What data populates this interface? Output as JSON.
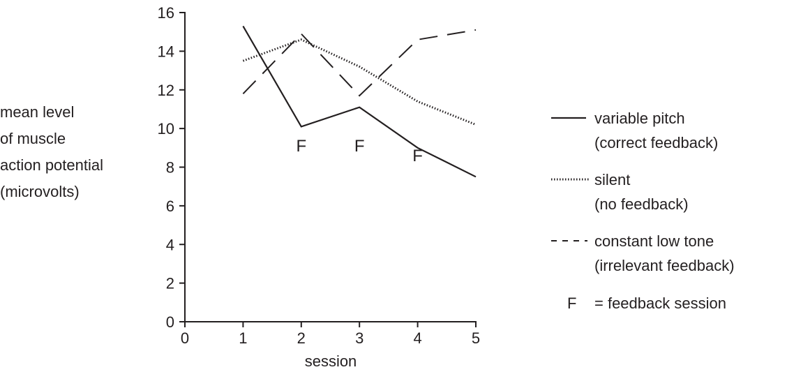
{
  "chart_data": {
    "type": "line",
    "title": "",
    "xlabel": "session",
    "ylabel_lines": [
      "mean level",
      "of muscle",
      "action potential",
      "(microvolts)"
    ],
    "xlim": [
      0,
      5
    ],
    "ylim": [
      0,
      16
    ],
    "xticks": [
      "0",
      "1",
      "2",
      "3",
      "4",
      "5"
    ],
    "yticks": [
      "0",
      "2",
      "4",
      "6",
      "8",
      "10",
      "12",
      "14",
      "16"
    ],
    "grid": false,
    "legend_position": "right",
    "x": [
      1,
      2,
      3,
      4,
      5
    ],
    "series": [
      {
        "key": "variable",
        "name_line1": "variable pitch",
        "name_line2": "(correct feedback)",
        "style": "solid",
        "values": [
          15.3,
          10.1,
          11.1,
          9.0,
          7.5
        ]
      },
      {
        "key": "silent",
        "name_line1": "silent",
        "name_line2": "(no feedback)",
        "style": "dotted",
        "values": [
          13.5,
          14.6,
          13.2,
          11.4,
          10.2
        ]
      },
      {
        "key": "constant",
        "name_line1": "constant low tone",
        "name_line2": "(irrelevant feedback)",
        "style": "dashed",
        "values": [
          11.8,
          14.9,
          11.7,
          14.6,
          15.1
        ]
      }
    ],
    "annotations": [
      {
        "text": "F",
        "x": 2,
        "y": 9.1
      },
      {
        "text": "F",
        "x": 3,
        "y": 9.1
      },
      {
        "text": "F",
        "x": 4,
        "y": 8.6
      }
    ],
    "legend_note": {
      "symbol": "F",
      "text": "= feedback session"
    }
  }
}
